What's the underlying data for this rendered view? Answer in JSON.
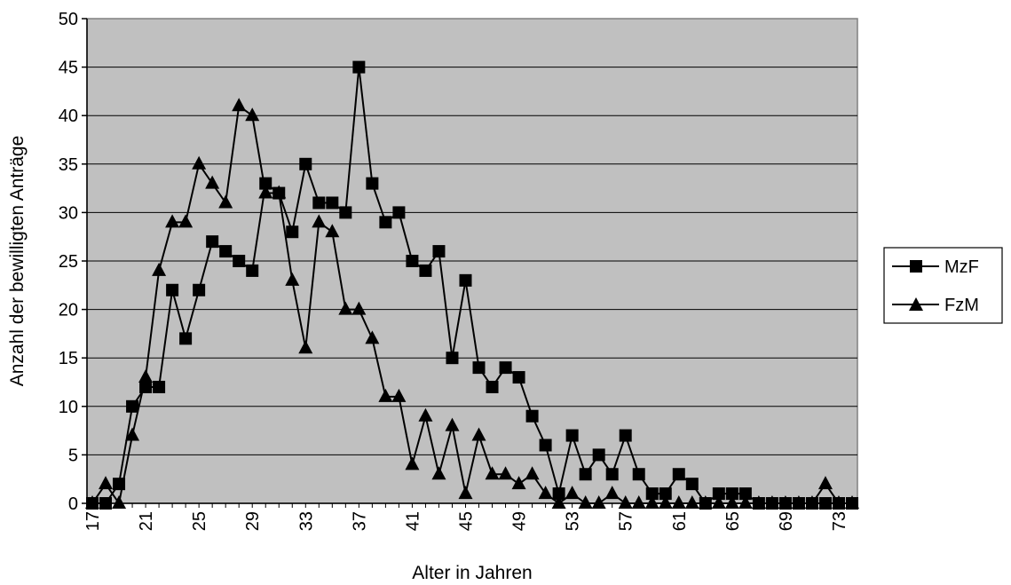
{
  "chart_data": {
    "type": "line",
    "xlabel": "Alter in Jahren",
    "ylabel": "Anzahl der bewilligten Anträge",
    "ylim": [
      0,
      50
    ],
    "y_ticks": [
      "0",
      "5",
      "10",
      "15",
      "20",
      "25",
      "30",
      "35",
      "40",
      "45",
      "50"
    ],
    "x": [
      17,
      18,
      19,
      20,
      21,
      22,
      23,
      24,
      25,
      26,
      27,
      28,
      29,
      30,
      31,
      32,
      33,
      34,
      35,
      36,
      37,
      38,
      39,
      40,
      41,
      42,
      43,
      44,
      45,
      46,
      47,
      48,
      49,
      50,
      51,
      52,
      53,
      54,
      55,
      56,
      57,
      58,
      59,
      60,
      61,
      62,
      63,
      64,
      65,
      66,
      67,
      68,
      69,
      70,
      71,
      72,
      73,
      74
    ],
    "x_tick_labels": [
      "17",
      "21",
      "25",
      "29",
      "33",
      "37",
      "41",
      "45",
      "49",
      "53",
      "57",
      "61",
      "65",
      "69",
      "73"
    ],
    "grid": "horizontal",
    "plot_background": "#c0c0c0",
    "legend_position": "right",
    "series": [
      {
        "name": "MzF",
        "marker": "square",
        "values": [
          0,
          0,
          2,
          10,
          12,
          12,
          22,
          17,
          22,
          27,
          26,
          25,
          24,
          33,
          32,
          28,
          35,
          31,
          31,
          30,
          45,
          33,
          29,
          30,
          25,
          24,
          26,
          15,
          23,
          14,
          12,
          14,
          13,
          9,
          6,
          1,
          7,
          3,
          5,
          3,
          7,
          3,
          1,
          1,
          3,
          2,
          0,
          1,
          1,
          1,
          0,
          0,
          0,
          0,
          0,
          0,
          0,
          0
        ]
      },
      {
        "name": "FzM",
        "marker": "triangle",
        "values": [
          0,
          2,
          0,
          7,
          13,
          24,
          29,
          29,
          35,
          33,
          31,
          41,
          40,
          32,
          32,
          23,
          16,
          29,
          28,
          20,
          20,
          17,
          11,
          11,
          4,
          9,
          3,
          8,
          1,
          7,
          3,
          3,
          2,
          3,
          1,
          0,
          1,
          0,
          0,
          1,
          0,
          0,
          0,
          0,
          0,
          0,
          0,
          0,
          0,
          0,
          0,
          0,
          0,
          0,
          0,
          2,
          0,
          0
        ]
      }
    ]
  }
}
